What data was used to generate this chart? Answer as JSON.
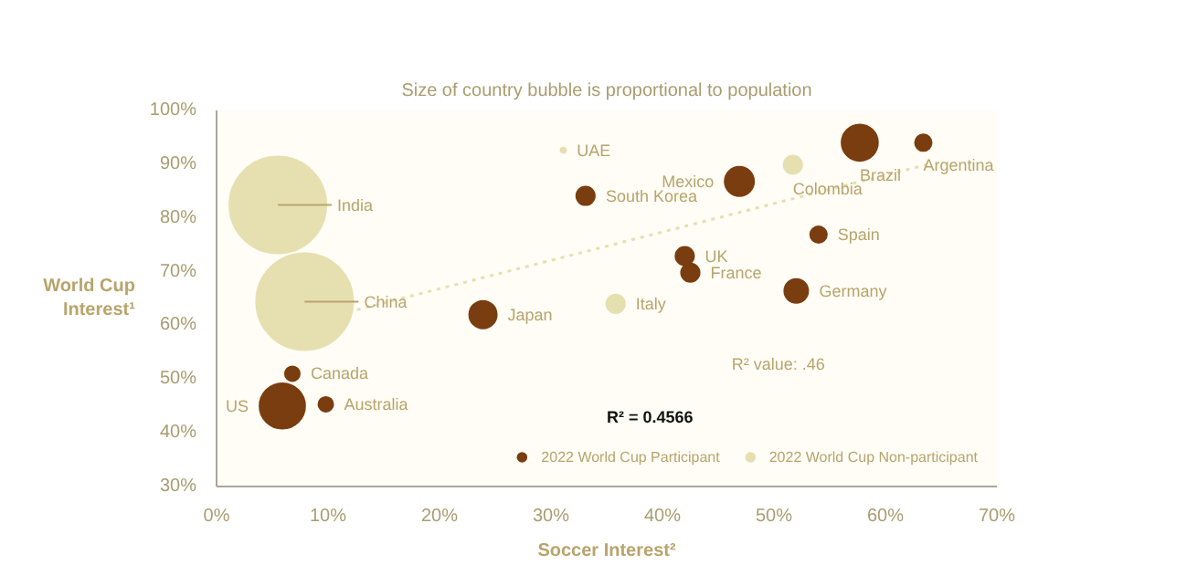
{
  "chart_data": {
    "type": "bubble",
    "title": "Size of country bubble is proportional to population",
    "xlabel": "Soccer Interest²",
    "ylabel": "World Cup Interest¹",
    "xlim": [
      0,
      70
    ],
    "ylim": [
      30,
      100
    ],
    "xticks": [
      {
        "value": 0,
        "label": "0%"
      },
      {
        "value": 10,
        "label": "10%"
      },
      {
        "value": 20,
        "label": "20%"
      },
      {
        "value": 30,
        "label": "30%"
      },
      {
        "value": 40,
        "label": "40%"
      },
      {
        "value": 50,
        "label": "50%"
      },
      {
        "value": 60,
        "label": "60%"
      },
      {
        "value": 70,
        "label": "70%"
      }
    ],
    "yticks": [
      {
        "value": 30,
        "label": "30%"
      },
      {
        "value": 40,
        "label": "40%"
      },
      {
        "value": 50,
        "label": "50%"
      },
      {
        "value": 60,
        "label": "60%"
      },
      {
        "value": 70,
        "label": "70%"
      },
      {
        "value": 80,
        "label": "80%"
      },
      {
        "value": 90,
        "label": "90%"
      },
      {
        "value": 100,
        "label": "100%"
      }
    ],
    "grid": false,
    "legend": "bottom right",
    "series": [
      {
        "name": "2022 World Cup Participant",
        "color": "#7a3d0f",
        "x": [
          6.8,
          5.9,
          9.8,
          23.9,
          33.1,
          42,
          42.5,
          46.9,
          52,
          54,
          57.7,
          63.4
        ],
        "values": [
          51,
          45,
          45.3,
          62,
          84.1,
          72.9,
          69.8,
          86.8,
          66.4,
          76.9,
          94,
          94
        ],
        "sizes": [
          0.023,
          0.22,
          0.023,
          0.08,
          0.036,
          0.036,
          0.036,
          0.091,
          0.06,
          0.029,
          0.14,
          0.029
        ]
      },
      {
        "name": "2022 World Cup Non-participant",
        "color": "#e6e0b0",
        "x": [
          5.5,
          7.9,
          31.1,
          35.8,
          51.7
        ],
        "values": [
          82.4,
          64.4,
          92.6,
          64,
          89.9
        ],
        "sizes": [
          1,
          1,
          0.003,
          0.036,
          0.036
        ]
      },
      {
        "type": "line",
        "color": "#e6e0b0",
        "line_style": "dotted",
        "x": [
          12.6,
          63.7
        ],
        "values": [
          62.9,
          89.9
        ]
      }
    ],
    "annotations": [
      {
        "text": "Canada",
        "x": 6.8,
        "y": 51
      },
      {
        "text": "US",
        "x": 5.9,
        "y": 45
      },
      {
        "text": "Australia",
        "x": 9.8,
        "y": 45.3
      },
      {
        "text": "Japan",
        "x": 23.9,
        "y": 62
      },
      {
        "text": "South Korea",
        "x": 33.1,
        "y": 84.1
      },
      {
        "text": "UK",
        "x": 42,
        "y": 72.9
      },
      {
        "text": "France",
        "x": 42.5,
        "y": 69.8
      },
      {
        "text": "Mexico",
        "x": 46.9,
        "y": 86.8
      },
      {
        "text": "Germany",
        "x": 52,
        "y": 66.4
      },
      {
        "text": "Spain",
        "x": 54,
        "y": 76.9
      },
      {
        "text": "Brazil",
        "x": 57.7,
        "y": 94
      },
      {
        "text": "Argentina",
        "x": 63.4,
        "y": 94
      },
      {
        "text": "India",
        "x": 5.5,
        "y": 82.4
      },
      {
        "text": "China",
        "x": 7.9,
        "y": 64.4
      },
      {
        "text": "UAE",
        "x": 31.1,
        "y": 92.6
      },
      {
        "text": "Italy",
        "x": 35.8,
        "y": 64
      },
      {
        "text": "Colombia",
        "x": 51.7,
        "y": 89.9
      },
      "R² value: .46",
      "R² = 0.4566"
    ]
  }
}
